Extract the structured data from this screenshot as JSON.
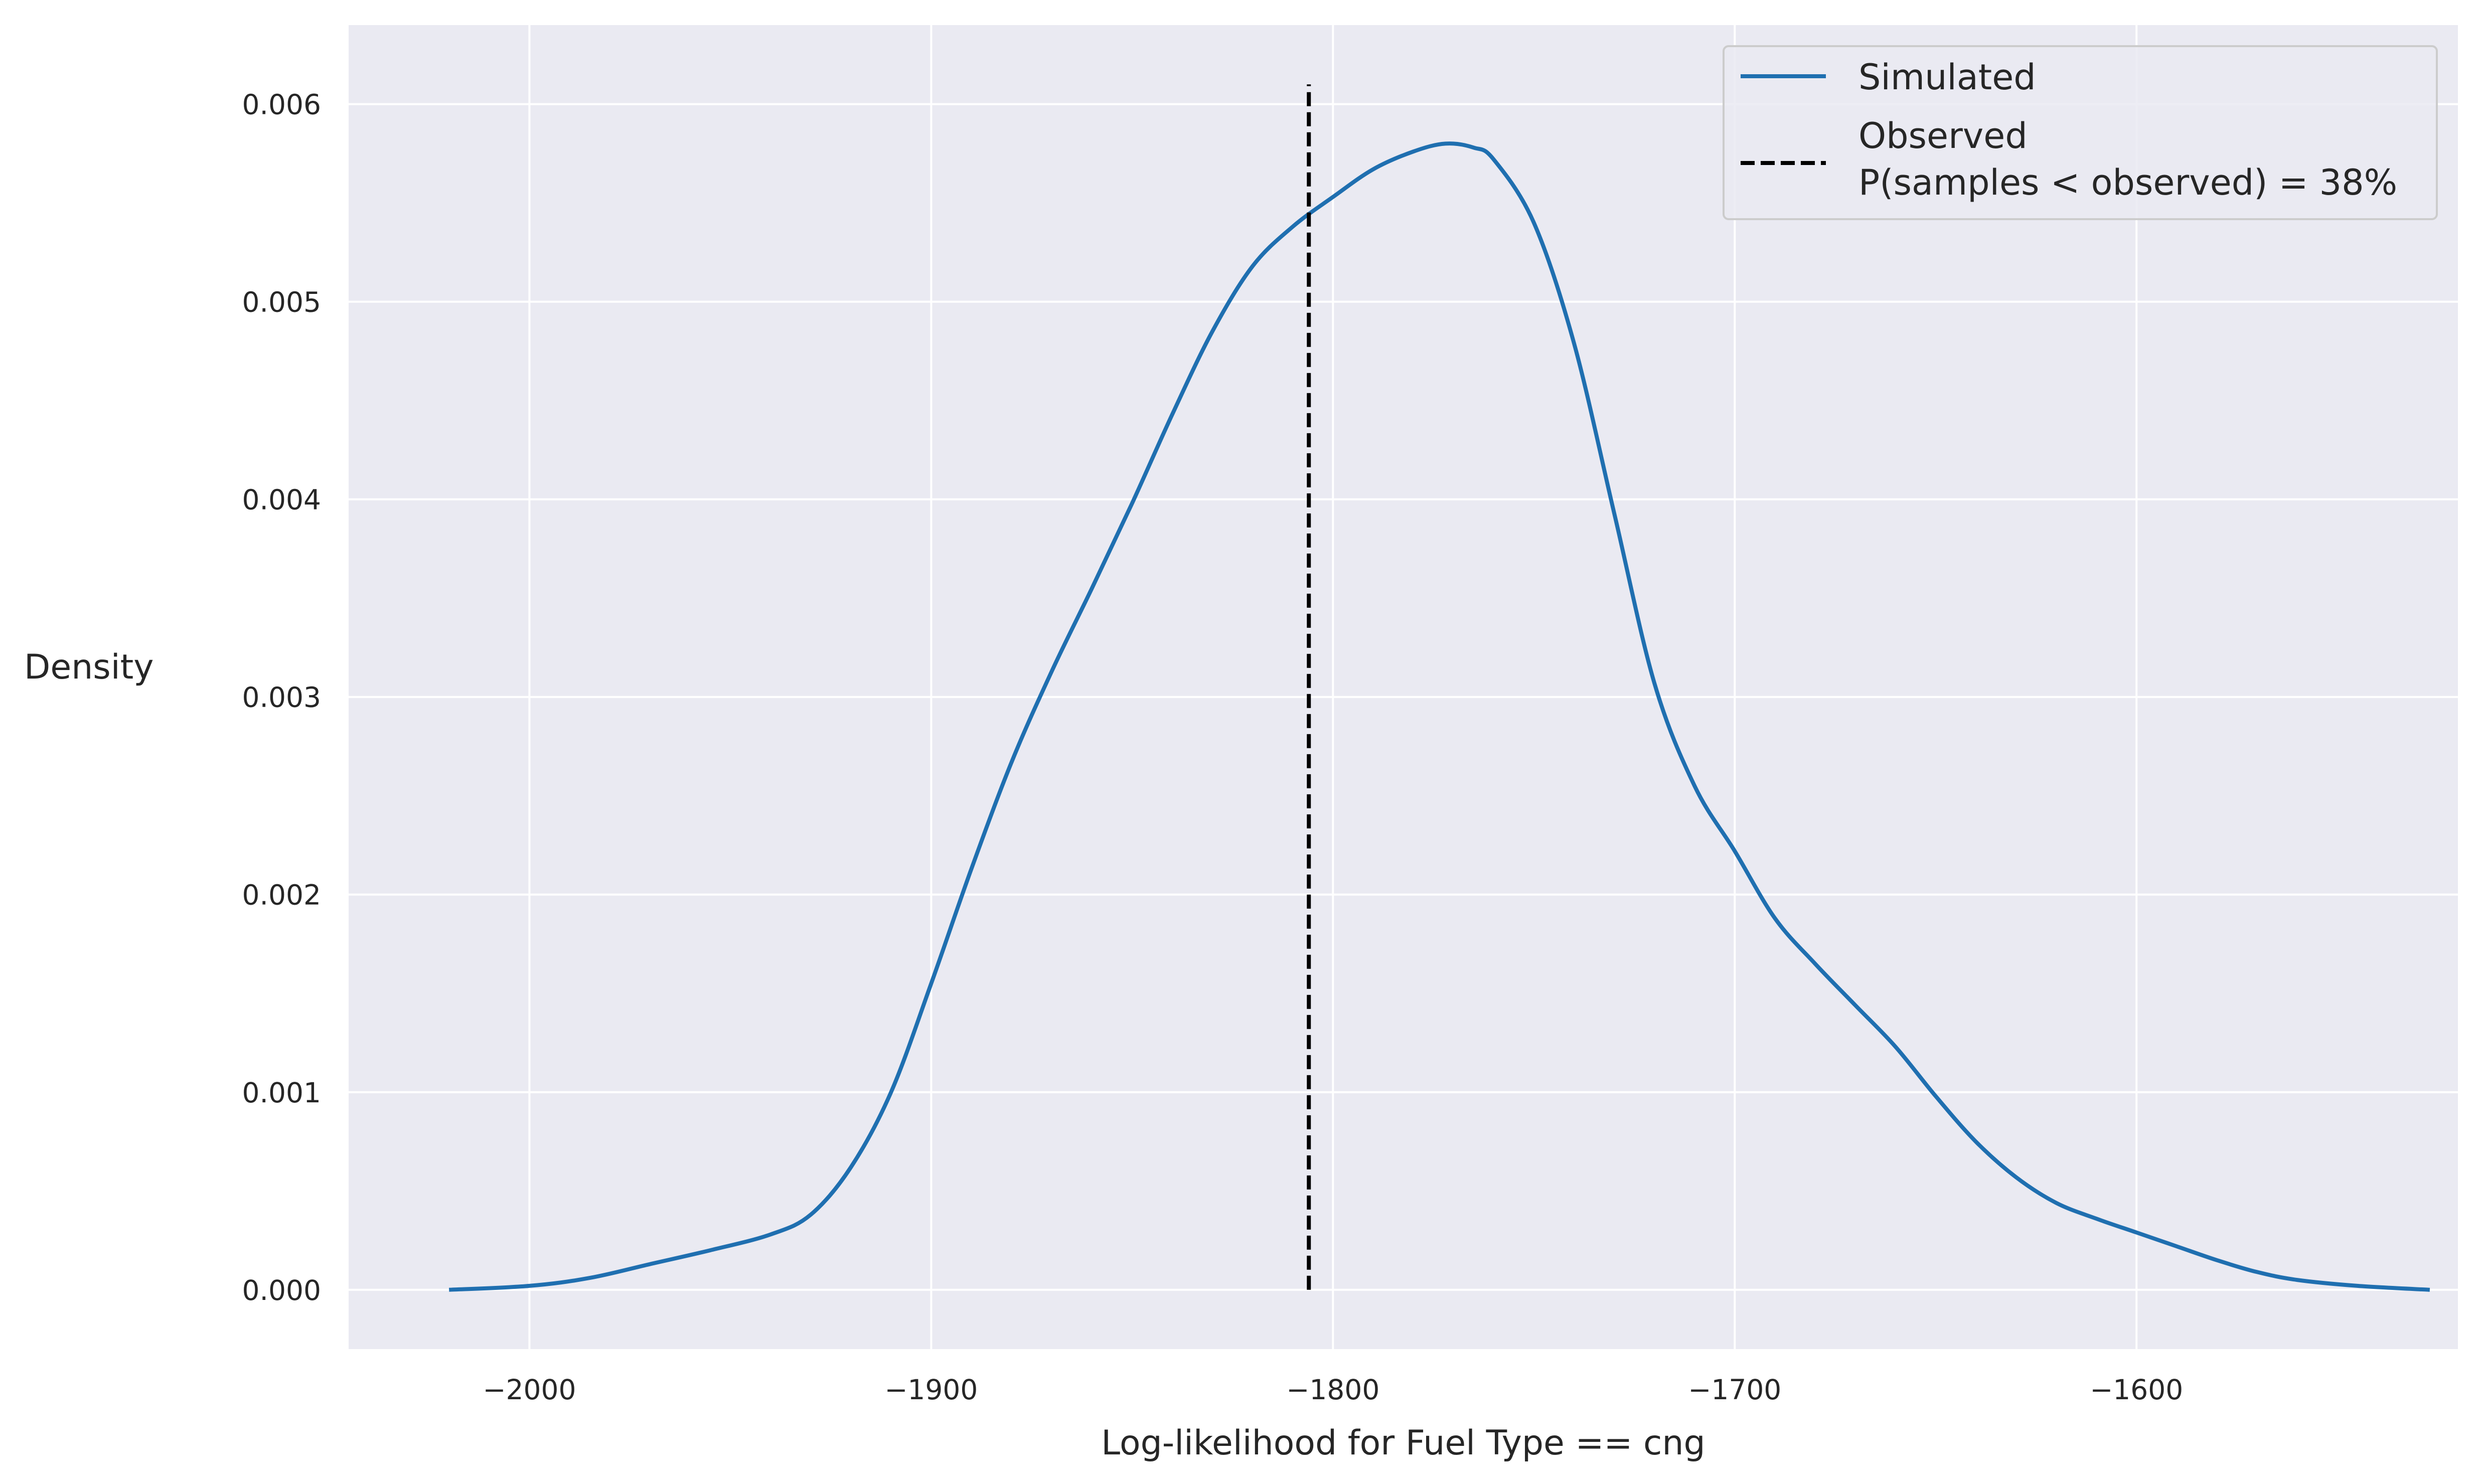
{
  "chart_data": {
    "type": "line",
    "title": "",
    "xlabel": "Log-likelihood for Fuel Type == cng",
    "ylabel": "Density",
    "xlim": [
      -2045,
      -1520
    ],
    "ylim": [
      -0.0003,
      0.0064
    ],
    "grid": true,
    "legend_position": "top-right",
    "x_ticks": [
      -2000,
      -1900,
      -1800,
      -1700,
      -1600
    ],
    "x_tick_labels": [
      "−2000",
      "−1900",
      "−1800",
      "−1700",
      "−1600"
    ],
    "y_ticks": [
      0.0,
      0.001,
      0.002,
      0.003,
      0.004,
      0.005,
      0.006
    ],
    "y_tick_labels": [
      "0.000",
      "0.001",
      "0.002",
      "0.003",
      "0.004",
      "0.005",
      "0.006"
    ],
    "series": [
      {
        "name": "Simulated",
        "color": "#1f6fb0",
        "style": "solid",
        "x": [
          -2020,
          -2000,
          -1985,
          -1970,
          -1955,
          -1940,
          -1930,
          -1920,
          -1910,
          -1900,
          -1890,
          -1880,
          -1870,
          -1860,
          -1850,
          -1840,
          -1830,
          -1820,
          -1810,
          -1800,
          -1790,
          -1780,
          -1772,
          -1765,
          -1760,
          -1750,
          -1740,
          -1730,
          -1720,
          -1710,
          -1700,
          -1690,
          -1680,
          -1670,
          -1660,
          -1650,
          -1640,
          -1630,
          -1620,
          -1610,
          -1600,
          -1590,
          -1580,
          -1570,
          -1560,
          -1545,
          -1527
        ],
        "y": [
          0.0,
          2e-05,
          6e-05,
          0.00013,
          0.0002,
          0.00028,
          0.00038,
          0.00062,
          0.001,
          0.00155,
          0.00213,
          0.00267,
          0.00313,
          0.00355,
          0.00398,
          0.00443,
          0.00485,
          0.00518,
          0.00538,
          0.00553,
          0.00567,
          0.00576,
          0.0058,
          0.00578,
          0.00572,
          0.0054,
          0.00479,
          0.00393,
          0.00307,
          0.00255,
          0.00222,
          0.00188,
          0.00165,
          0.00144,
          0.00123,
          0.00098,
          0.00075,
          0.00057,
          0.00044,
          0.00036,
          0.00029,
          0.00022,
          0.00015,
          9e-05,
          5e-05,
          2e-05,
          0.0
        ]
      }
    ],
    "observed": {
      "label_line1": "Observed",
      "label_line2": "P(samples < observed) = 38%",
      "x": -1806,
      "y_top": 0.0061,
      "color": "#000000",
      "style": "dashed"
    }
  }
}
